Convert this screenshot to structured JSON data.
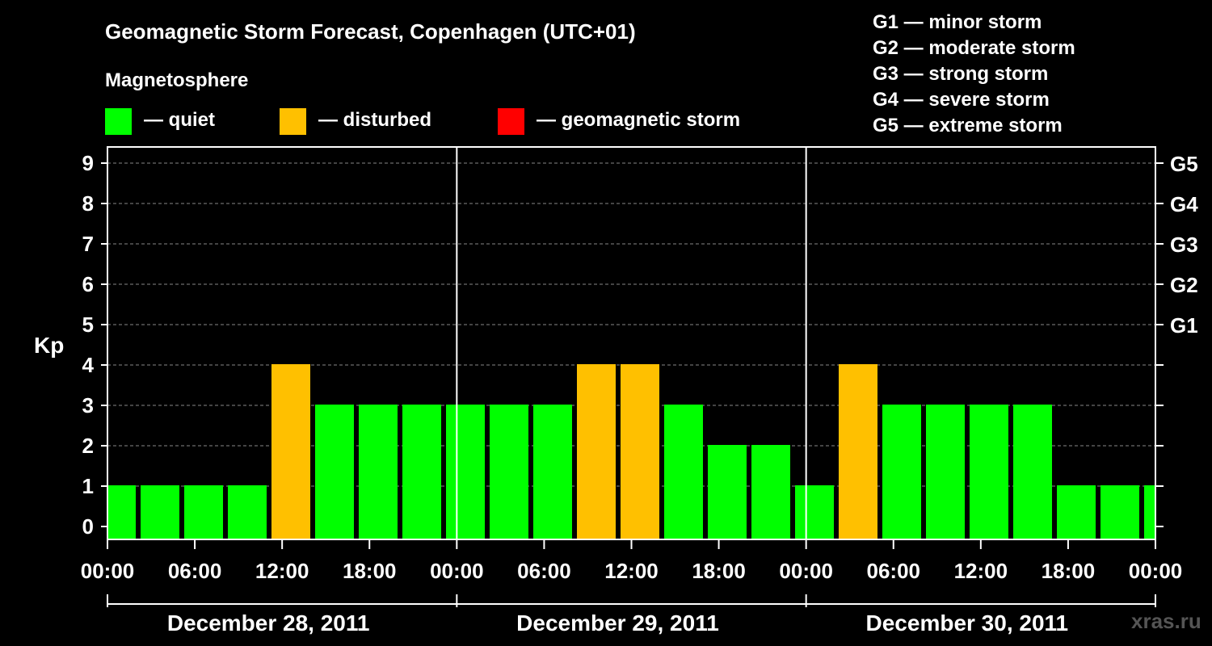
{
  "chart_data": {
    "type": "bar",
    "title": "Geomagnetic Storm Forecast, Copenhagen (UTC+01)",
    "subtitle": "Magnetosphere",
    "ylabel": "Kp",
    "ylim": [
      0,
      9
    ],
    "yticks": [
      "0",
      "1",
      "2",
      "3",
      "4",
      "5",
      "6",
      "7",
      "8",
      "9"
    ],
    "right_ticks": [
      {
        "kp": 5,
        "label": "G1"
      },
      {
        "kp": 6,
        "label": "G2"
      },
      {
        "kp": 7,
        "label": "G3"
      },
      {
        "kp": 8,
        "label": "G4"
      },
      {
        "kp": 9,
        "label": "G5"
      }
    ],
    "xticks": [
      "00:00",
      "06:00",
      "12:00",
      "18:00",
      "00:00",
      "06:00",
      "12:00",
      "18:00",
      "00:00",
      "06:00",
      "12:00",
      "18:00",
      "00:00"
    ],
    "days": [
      "December 28, 2011",
      "December 29, 2011",
      "December 30, 2011"
    ],
    "x_start": "2011-12-28 00:00",
    "bar_interval_hours": 3,
    "values": [
      1,
      1,
      1,
      1,
      4,
      3,
      3,
      3,
      3,
      3,
      3,
      4,
      4,
      3,
      2,
      2,
      1,
      4,
      3,
      3,
      3,
      3,
      1,
      1,
      1
    ],
    "grid": true
  },
  "legend": {
    "quiet": {
      "label": "— quiet",
      "color": "#00ff00"
    },
    "disturbed": {
      "label": "— disturbed",
      "color": "#ffc000"
    },
    "storm": {
      "label": "— geomagnetic storm",
      "color": "#ff0000"
    }
  },
  "storm_scale": [
    "G1 — minor storm",
    "G2 — moderate storm",
    "G3 — strong storm",
    "G4 — severe storm",
    "G5 — extreme storm"
  ],
  "watermark": "xras.ru"
}
